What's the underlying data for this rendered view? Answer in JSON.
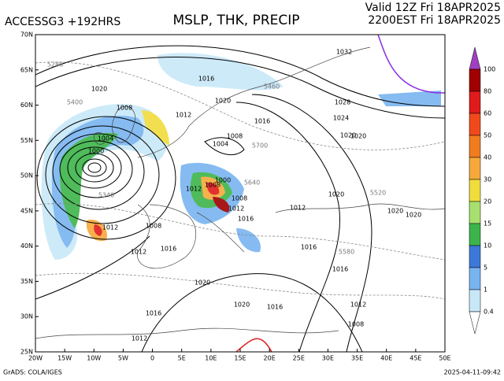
{
  "header": {
    "model": "ACCESSG3 +192HRS",
    "title": "MSLP, THK, PRECIP",
    "valid": "Valid 12Z Fri 18APR2025",
    "local": "2200EST Fri 18APR2025"
  },
  "map": {
    "lat_labels": [
      "70N",
      "65N",
      "60N",
      "55N",
      "50N",
      "45N",
      "40N",
      "35N",
      "30N",
      "25N"
    ],
    "lon_labels": [
      "20W",
      "15W",
      "10W",
      "5W",
      "0",
      "5E",
      "10E",
      "15E",
      "20E",
      "25E",
      "30E",
      "35E",
      "40E",
      "45E",
      "50E"
    ],
    "contour_labels": [
      "1032",
      "1028",
      "1024",
      "1020",
      "1020",
      "1008",
      "1012",
      "1016",
      "1020",
      "1016",
      "1008",
      "1004",
      "1000",
      "1004",
      "1000",
      "1012",
      "1008",
      "1008",
      "1012",
      "1016",
      "1012",
      "1020",
      "1020",
      "1020",
      "1016",
      "1016",
      "1012",
      "1016",
      "1020",
      "1020",
      "1016",
      "1016",
      "1012",
      "1012",
      "1008",
      "1008",
      "1012",
      "1020"
    ],
    "thickness_labels": [
      "5280",
      "5400",
      "5520",
      "5580",
      "5640",
      "5700",
      "5460",
      "5340"
    ]
  },
  "colorbar": {
    "labels": [
      "100",
      "80",
      "60",
      "50",
      "40",
      "30",
      "20",
      "15",
      "10",
      "5",
      "1",
      "0.4"
    ],
    "colors": [
      "#a040c0",
      "#a00000",
      "#e01b1b",
      "#f04a1c",
      "#f07c20",
      "#f6a93a",
      "#f0dc3c",
      "#a8e070",
      "#3cb44a",
      "#3c78d8",
      "#78b4f0",
      "#c8e8f8",
      "#ffffff"
    ]
  },
  "footer": {
    "source": "GrADS: COLA/IGES",
    "timestamp": "2025-04-11-09:42"
  }
}
